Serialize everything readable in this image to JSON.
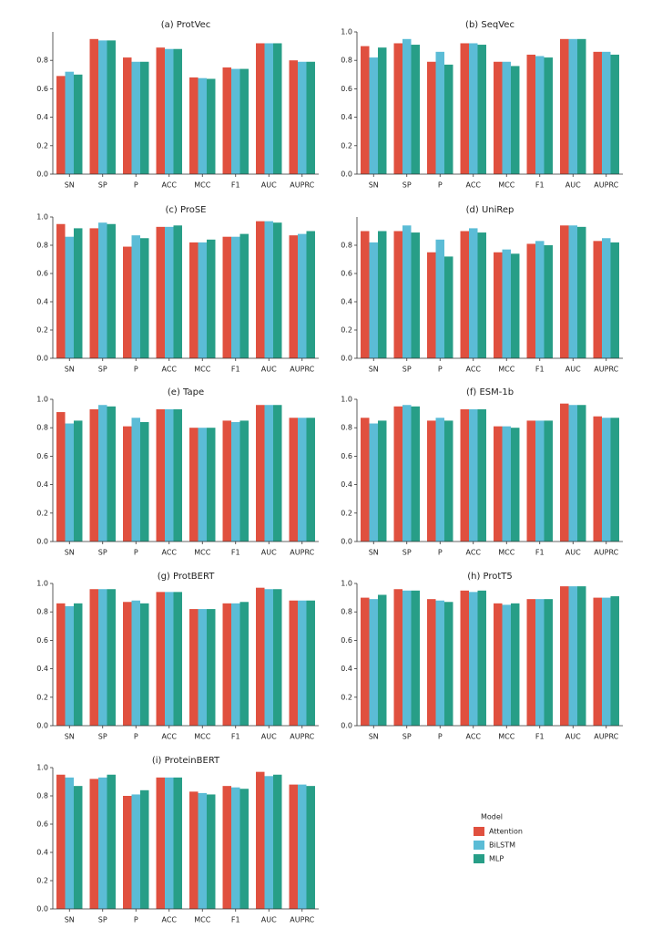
{
  "chart_data": [
    {
      "type": "bar",
      "title": "(a) ProtVec",
      "categories": [
        "SN",
        "SP",
        "P",
        "ACC",
        "MCC",
        "F1",
        "AUC",
        "AUPRC"
      ],
      "series": [
        {
          "name": "Attention",
          "color": "#e0503f",
          "values": [
            0.69,
            0.95,
            0.82,
            0.89,
            0.68,
            0.75,
            0.92,
            0.8
          ]
        },
        {
          "name": "BiLSTM",
          "color": "#5bbcd6",
          "values": [
            0.72,
            0.94,
            0.79,
            0.88,
            0.675,
            0.74,
            0.92,
            0.79
          ]
        },
        {
          "name": "MLP",
          "color": "#279e87",
          "values": [
            0.7,
            0.94,
            0.79,
            0.88,
            0.67,
            0.74,
            0.92,
            0.79
          ]
        }
      ],
      "ylim": [
        0,
        1.0
      ],
      "yticks": [
        {
          "value": 0,
          "label": "0.0"
        },
        {
          "value": 0.2,
          "label": "0.2"
        },
        {
          "value": 0.4,
          "label": "0.4"
        },
        {
          "value": 0.6,
          "label": "0.6"
        },
        {
          "value": 0.8,
          "label": "0.8"
        }
      ]
    },
    {
      "type": "bar",
      "title": "(b) SeqVec",
      "categories": [
        "SN",
        "SP",
        "P",
        "ACC",
        "MCC",
        "F1",
        "AUC",
        "AUPRC"
      ],
      "series": [
        {
          "name": "Attention",
          "color": "#e0503f",
          "values": [
            0.9,
            0.92,
            0.79,
            0.92,
            0.79,
            0.84,
            0.95,
            0.86
          ]
        },
        {
          "name": "BiLSTM",
          "color": "#5bbcd6",
          "values": [
            0.82,
            0.95,
            0.86,
            0.92,
            0.79,
            0.83,
            0.95,
            0.86
          ]
        },
        {
          "name": "MLP",
          "color": "#279e87",
          "values": [
            0.89,
            0.91,
            0.77,
            0.91,
            0.76,
            0.82,
            0.95,
            0.84
          ]
        }
      ],
      "ylim": [
        0,
        1.0
      ],
      "yticks": [
        {
          "value": 0,
          "label": "0.0"
        },
        {
          "value": 0.2,
          "label": "0.2"
        },
        {
          "value": 0.4,
          "label": "0.4"
        },
        {
          "value": 0.6,
          "label": "0.6"
        },
        {
          "value": 0.8,
          "label": "0.8"
        },
        {
          "value": 1,
          "label": "1.0"
        }
      ]
    },
    {
      "type": "bar",
      "title": "(c) ProSE",
      "categories": [
        "SN",
        "SP",
        "P",
        "ACC",
        "MCC",
        "F1",
        "AUC",
        "AUPRC"
      ],
      "series": [
        {
          "name": "Attention",
          "color": "#e0503f",
          "values": [
            0.95,
            0.92,
            0.79,
            0.93,
            0.82,
            0.86,
            0.97,
            0.87
          ]
        },
        {
          "name": "BiLSTM",
          "color": "#5bbcd6",
          "values": [
            0.86,
            0.96,
            0.87,
            0.93,
            0.82,
            0.86,
            0.97,
            0.88
          ]
        },
        {
          "name": "MLP",
          "color": "#279e87",
          "values": [
            0.92,
            0.95,
            0.85,
            0.94,
            0.84,
            0.88,
            0.96,
            0.9
          ]
        }
      ],
      "ylim": [
        0,
        1.0
      ],
      "yticks": [
        {
          "value": 0,
          "label": "0.0"
        },
        {
          "value": 0.2,
          "label": "0.2"
        },
        {
          "value": 0.4,
          "label": "0.4"
        },
        {
          "value": 0.6,
          "label": "0.6"
        },
        {
          "value": 0.8,
          "label": "0.8"
        },
        {
          "value": 1,
          "label": "1.0"
        }
      ]
    },
    {
      "type": "bar",
      "title": "(d) UniRep",
      "categories": [
        "SN",
        "SP",
        "P",
        "ACC",
        "MCC",
        "F1",
        "AUC",
        "AUPRC"
      ],
      "series": [
        {
          "name": "Attention",
          "color": "#e0503f",
          "values": [
            0.9,
            0.9,
            0.75,
            0.9,
            0.75,
            0.81,
            0.94,
            0.83
          ]
        },
        {
          "name": "BiLSTM",
          "color": "#5bbcd6",
          "values": [
            0.82,
            0.94,
            0.84,
            0.92,
            0.77,
            0.83,
            0.94,
            0.85
          ]
        },
        {
          "name": "MLP",
          "color": "#279e87",
          "values": [
            0.9,
            0.89,
            0.72,
            0.89,
            0.74,
            0.8,
            0.93,
            0.82
          ]
        }
      ],
      "ylim": [
        0,
        1.0
      ],
      "yticks": [
        {
          "value": 0,
          "label": "0.0"
        },
        {
          "value": 0.2,
          "label": "0.2"
        },
        {
          "value": 0.4,
          "label": "0.4"
        },
        {
          "value": 0.6,
          "label": "0.6"
        },
        {
          "value": 0.8,
          "label": "0.8"
        }
      ]
    },
    {
      "type": "bar",
      "title": "(e) Tape",
      "categories": [
        "SN",
        "SP",
        "P",
        "ACC",
        "MCC",
        "F1",
        "AUC",
        "AUPRC"
      ],
      "series": [
        {
          "name": "Attention",
          "color": "#e0503f",
          "values": [
            0.91,
            0.93,
            0.81,
            0.93,
            0.8,
            0.85,
            0.96,
            0.87
          ]
        },
        {
          "name": "BiLSTM",
          "color": "#5bbcd6",
          "values": [
            0.83,
            0.96,
            0.87,
            0.93,
            0.8,
            0.84,
            0.96,
            0.87
          ]
        },
        {
          "name": "MLP",
          "color": "#279e87",
          "values": [
            0.85,
            0.95,
            0.84,
            0.93,
            0.8,
            0.85,
            0.96,
            0.87
          ]
        }
      ],
      "ylim": [
        0,
        1.0
      ],
      "yticks": [
        {
          "value": 0,
          "label": "0.0"
        },
        {
          "value": 0.2,
          "label": "0.2"
        },
        {
          "value": 0.4,
          "label": "0.4"
        },
        {
          "value": 0.6,
          "label": "0.6"
        },
        {
          "value": 0.8,
          "label": "0.8"
        },
        {
          "value": 1,
          "label": "1.0"
        }
      ]
    },
    {
      "type": "bar",
      "title": "(f) ESM-1b",
      "categories": [
        "SN",
        "SP",
        "P",
        "ACC",
        "MCC",
        "F1",
        "AUC",
        "AUPRC"
      ],
      "series": [
        {
          "name": "Attention",
          "color": "#e0503f",
          "values": [
            0.87,
            0.95,
            0.85,
            0.93,
            0.81,
            0.85,
            0.97,
            0.88
          ]
        },
        {
          "name": "BiLSTM",
          "color": "#5bbcd6",
          "values": [
            0.83,
            0.96,
            0.87,
            0.93,
            0.81,
            0.85,
            0.96,
            0.87
          ]
        },
        {
          "name": "MLP",
          "color": "#279e87",
          "values": [
            0.85,
            0.95,
            0.85,
            0.93,
            0.8,
            0.85,
            0.96,
            0.87
          ]
        }
      ],
      "ylim": [
        0,
        1.0
      ],
      "yticks": [
        {
          "value": 0,
          "label": "0.0"
        },
        {
          "value": 0.2,
          "label": "0.2"
        },
        {
          "value": 0.4,
          "label": "0.4"
        },
        {
          "value": 0.6,
          "label": "0.6"
        },
        {
          "value": 0.8,
          "label": "0.8"
        },
        {
          "value": 1,
          "label": "1.0"
        }
      ]
    },
    {
      "type": "bar",
      "title": "(g) ProtBERT",
      "categories": [
        "SN",
        "SP",
        "P",
        "ACC",
        "MCC",
        "F1",
        "AUC",
        "AUPRC"
      ],
      "series": [
        {
          "name": "Attention",
          "color": "#e0503f",
          "values": [
            0.86,
            0.96,
            0.87,
            0.94,
            0.82,
            0.86,
            0.97,
            0.88
          ]
        },
        {
          "name": "BiLSTM",
          "color": "#5bbcd6",
          "values": [
            0.84,
            0.96,
            0.88,
            0.94,
            0.82,
            0.86,
            0.96,
            0.88
          ]
        },
        {
          "name": "MLP",
          "color": "#279e87",
          "values": [
            0.86,
            0.96,
            0.86,
            0.94,
            0.82,
            0.87,
            0.96,
            0.88
          ]
        }
      ],
      "ylim": [
        0,
        1.0
      ],
      "yticks": [
        {
          "value": 0,
          "label": "0.0"
        },
        {
          "value": 0.2,
          "label": "0.2"
        },
        {
          "value": 0.4,
          "label": "0.4"
        },
        {
          "value": 0.6,
          "label": "0.6"
        },
        {
          "value": 0.8,
          "label": "0.8"
        },
        {
          "value": 1,
          "label": "1.0"
        }
      ]
    },
    {
      "type": "bar",
      "title": "(h) ProtT5",
      "categories": [
        "SN",
        "SP",
        "P",
        "ACC",
        "MCC",
        "F1",
        "AUC",
        "AUPRC"
      ],
      "series": [
        {
          "name": "Attention",
          "color": "#e0503f",
          "values": [
            0.9,
            0.96,
            0.89,
            0.95,
            0.86,
            0.89,
            0.98,
            0.9
          ]
        },
        {
          "name": "BiLSTM",
          "color": "#5bbcd6",
          "values": [
            0.89,
            0.95,
            0.88,
            0.94,
            0.85,
            0.89,
            0.98,
            0.9
          ]
        },
        {
          "name": "MLP",
          "color": "#279e87",
          "values": [
            0.92,
            0.95,
            0.87,
            0.95,
            0.86,
            0.89,
            0.98,
            0.91
          ]
        }
      ],
      "ylim": [
        0,
        1.0
      ],
      "yticks": [
        {
          "value": 0,
          "label": "0.0"
        },
        {
          "value": 0.2,
          "label": "0.2"
        },
        {
          "value": 0.4,
          "label": "0.4"
        },
        {
          "value": 0.6,
          "label": "0.6"
        },
        {
          "value": 0.8,
          "label": "0.8"
        },
        {
          "value": 1,
          "label": "1.0"
        }
      ]
    },
    {
      "type": "bar",
      "title": "(i) ProteinBERT",
      "categories": [
        "SN",
        "SP",
        "P",
        "ACC",
        "MCC",
        "F1",
        "AUC",
        "AUPRC"
      ],
      "series": [
        {
          "name": "Attention",
          "color": "#e0503f",
          "values": [
            0.95,
            0.92,
            0.8,
            0.93,
            0.83,
            0.87,
            0.97,
            0.88
          ]
        },
        {
          "name": "BiLSTM",
          "color": "#5bbcd6",
          "values": [
            0.93,
            0.93,
            0.81,
            0.93,
            0.82,
            0.86,
            0.94,
            0.88
          ]
        },
        {
          "name": "MLP",
          "color": "#279e87",
          "values": [
            0.87,
            0.95,
            0.84,
            0.93,
            0.81,
            0.85,
            0.95,
            0.87
          ]
        }
      ],
      "ylim": [
        0,
        1.0
      ],
      "yticks": [
        {
          "value": 0,
          "label": "0.0"
        },
        {
          "value": 0.2,
          "label": "0.2"
        },
        {
          "value": 0.4,
          "label": "0.4"
        },
        {
          "value": 0.6,
          "label": "0.6"
        },
        {
          "value": 0.8,
          "label": "0.8"
        },
        {
          "value": 1,
          "label": "1.0"
        }
      ],
      "legend_title": "Model"
    }
  ]
}
